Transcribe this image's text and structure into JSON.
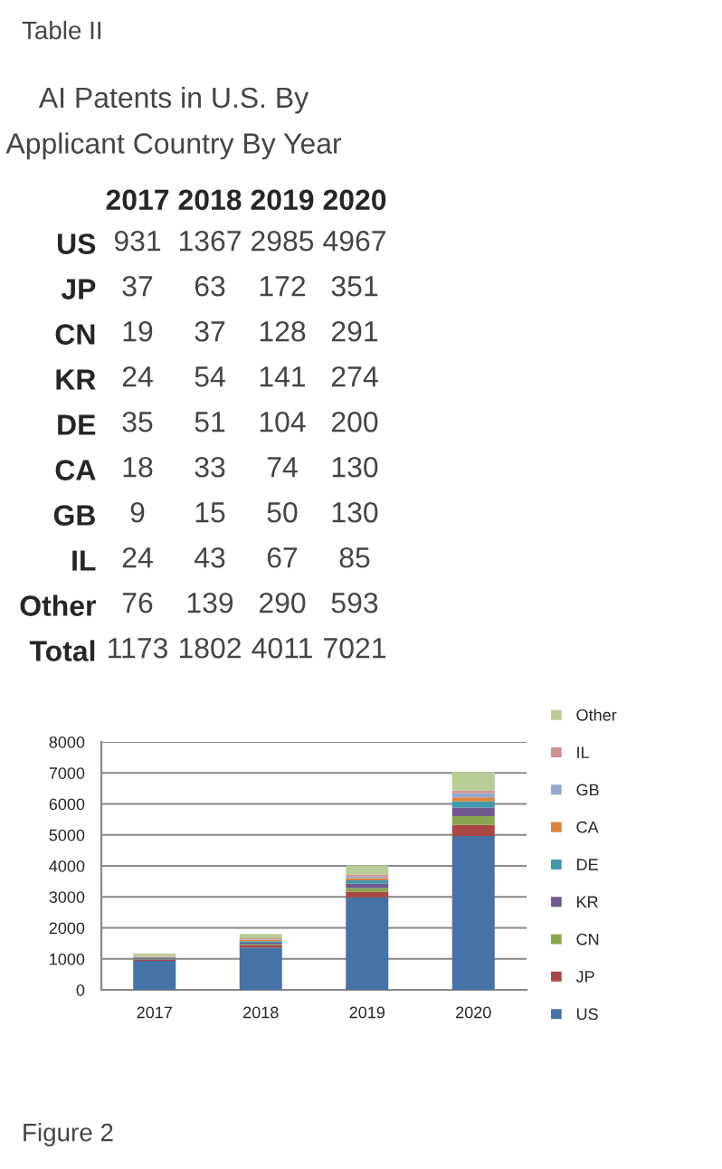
{
  "chart_data": [
    {
      "type": "heatmap",
      "title": "AI Patents in U.S. By Applicant Country By Year",
      "annotations": [
        "Table II"
      ],
      "categories": [
        "2017",
        "2018",
        "2019",
        "2020"
      ],
      "y_categories": [
        "US",
        "JP",
        "CN",
        "KR",
        "DE",
        "CA",
        "GB",
        "IL",
        "Other",
        "Total"
      ],
      "cells": [
        [
          931,
          1367,
          2985,
          4967
        ],
        [
          37,
          63,
          172,
          351
        ],
        [
          19,
          37,
          128,
          291
        ],
        [
          24,
          54,
          141,
          274
        ],
        [
          35,
          51,
          104,
          200
        ],
        [
          18,
          33,
          74,
          130
        ],
        [
          9,
          15,
          50,
          130
        ],
        [
          24,
          43,
          67,
          85
        ],
        [
          76,
          139,
          290,
          593
        ],
        [
          1173,
          1802,
          4011,
          7021
        ]
      ],
      "data_labels": true
    },
    {
      "type": "bar",
      "stacked": true,
      "annotations": [
        "Figure 2"
      ],
      "categories": [
        "2017",
        "2018",
        "2019",
        "2020"
      ],
      "series": [
        {
          "name": "US",
          "color": "#4572a7",
          "values": [
            931,
            1367,
            2985,
            4967
          ]
        },
        {
          "name": "JP",
          "color": "#aa4643",
          "values": [
            37,
            63,
            172,
            351
          ]
        },
        {
          "name": "CN",
          "color": "#89a54e",
          "values": [
            19,
            37,
            128,
            291
          ]
        },
        {
          "name": "KR",
          "color": "#71588f",
          "values": [
            24,
            54,
            141,
            274
          ]
        },
        {
          "name": "DE",
          "color": "#4198af",
          "values": [
            35,
            51,
            104,
            200
          ]
        },
        {
          "name": "CA",
          "color": "#db843d",
          "values": [
            18,
            33,
            74,
            130
          ]
        },
        {
          "name": "GB",
          "color": "#93a9cf",
          "values": [
            9,
            15,
            50,
            130
          ]
        },
        {
          "name": "IL",
          "color": "#d19392",
          "values": [
            24,
            43,
            67,
            85
          ]
        },
        {
          "name": "Other",
          "color": "#b9cd96",
          "values": [
            76,
            139,
            290,
            593
          ]
        }
      ],
      "ylim": [
        0,
        8000
      ],
      "yticks": [
        0,
        1000,
        2000,
        3000,
        4000,
        5000,
        6000,
        7000,
        8000
      ],
      "grid": "y",
      "legend": "right"
    }
  ]
}
